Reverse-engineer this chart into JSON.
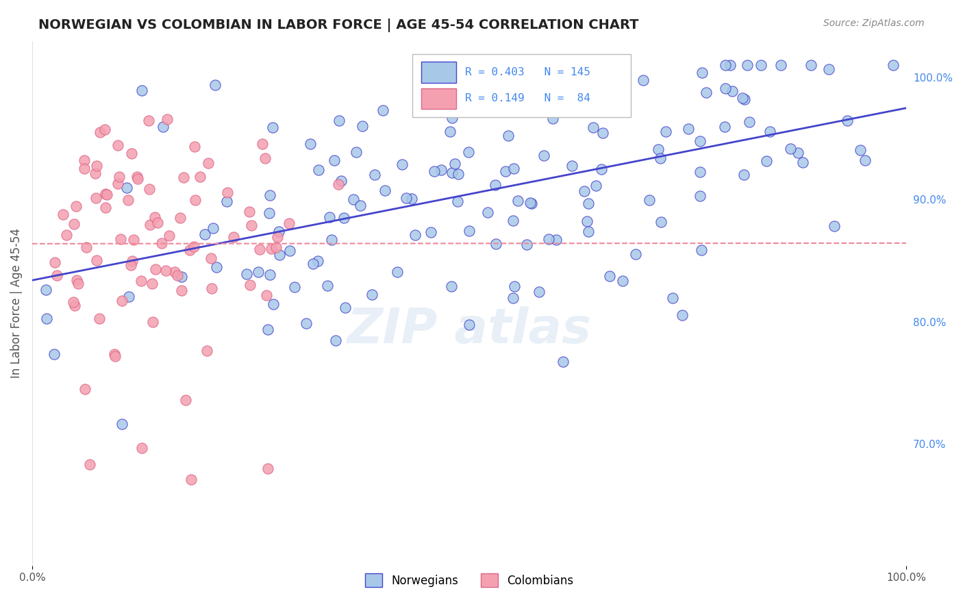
{
  "title": "NORWEGIAN VS COLOMBIAN IN LABOR FORCE | AGE 45-54 CORRELATION CHART",
  "source": "Source: ZipAtlas.com",
  "xlabel": "",
  "ylabel": "In Labor Force | Age 45-54",
  "xlim": [
    0.0,
    1.0
  ],
  "ylim": [
    0.6,
    1.03
  ],
  "x_tick_labels": [
    "0.0%",
    "100.0%"
  ],
  "y_tick_labels_right": [
    "70.0%",
    "80.0%",
    "90.0%",
    "100.0%"
  ],
  "norwegian_R": 0.403,
  "norwegian_N": 145,
  "colombian_R": 0.149,
  "colombian_N": 84,
  "norwegian_color": "#a8c8e8",
  "colombian_color": "#f4a0b0",
  "norwegian_line_color": "#4444cc",
  "colombian_line_color": "#ee8899",
  "legend_box_color_norwegian": "#a8c8e8",
  "legend_box_color_colombian": "#f4a0b0",
  "watermark": "ZIPatlas",
  "background_color": "#ffffff",
  "grid_color": "#e0e0e0",
  "title_color": "#222222",
  "source_color": "#888888",
  "axis_label_color": "#555555",
  "right_tick_color_norwegian": "#4488ee",
  "right_tick_color_colombian": "#4488ee"
}
